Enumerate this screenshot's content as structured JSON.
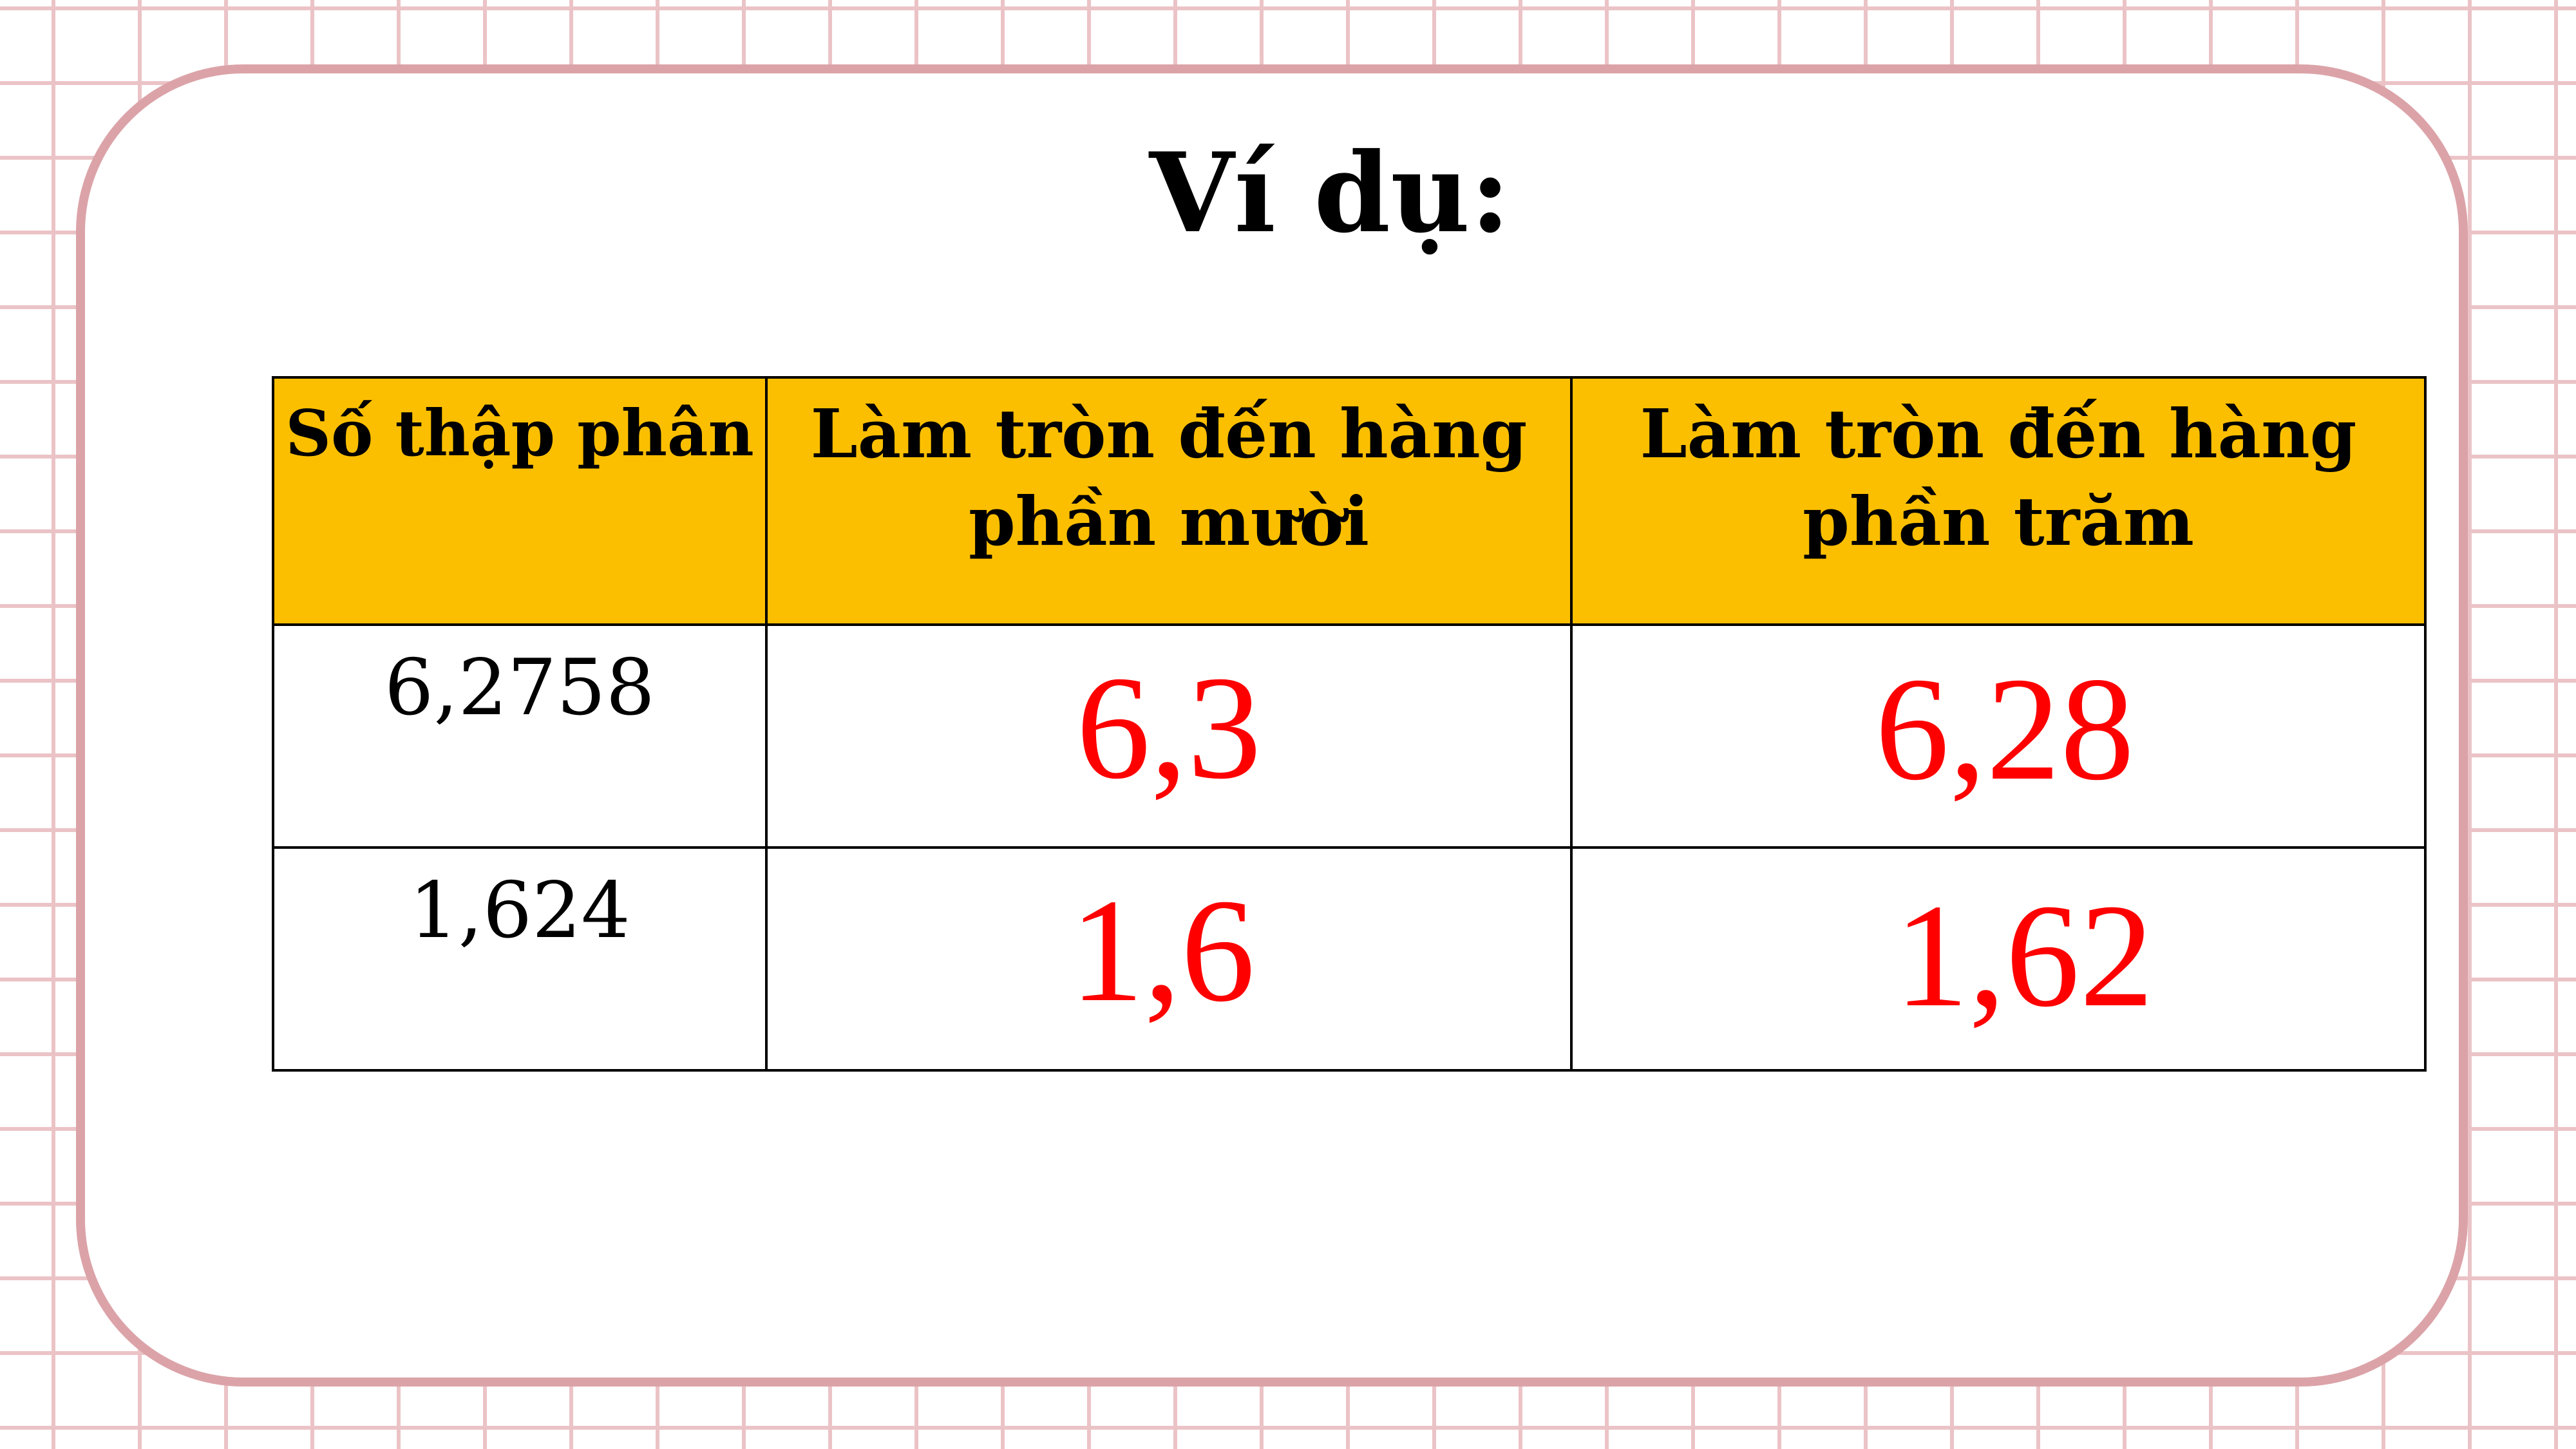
{
  "title": "Ví dụ:",
  "table": {
    "headers": [
      "Số thập phân",
      "Làm tròn đến hàng phần mười",
      "Làm tròn đến hàng phần trăm"
    ],
    "rows": [
      {
        "number": "6,2758",
        "tenths": "6,3",
        "hundredths": "6,28"
      },
      {
        "number": "1,624",
        "tenths": "1,6",
        "hundredths": "1,62"
      }
    ]
  },
  "colors": {
    "header_bg": "#fcbf00",
    "card_border": "#dba3a8",
    "grid_line": "#ebc3c6",
    "answer_text": "#ff0000"
  }
}
